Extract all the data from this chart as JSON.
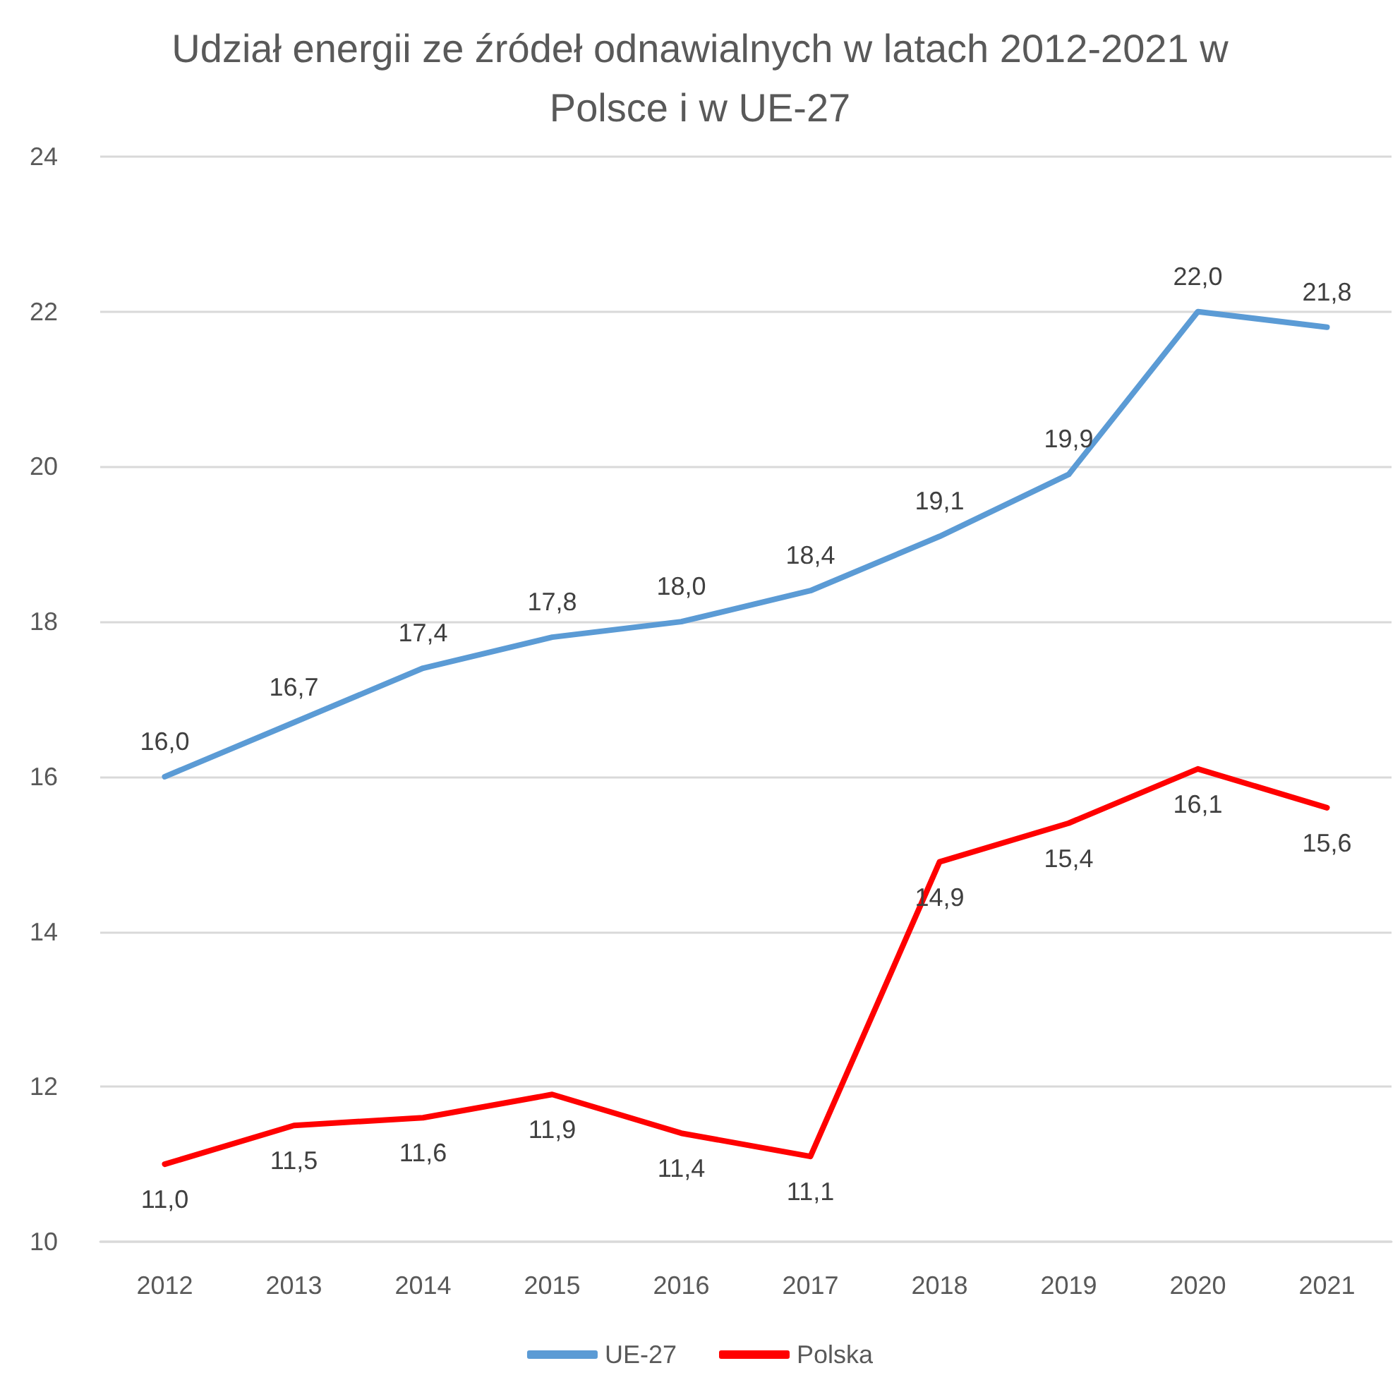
{
  "chart_data": {
    "type": "line",
    "title": "Udział energii ze źródeł odnawialnych w latach 2012-2021 w Polsce i w UE-27",
    "categories": [
      "2012",
      "2013",
      "2014",
      "2015",
      "2016",
      "2017",
      "2018",
      "2019",
      "2020",
      "2021"
    ],
    "series": [
      {
        "name": "UE-27",
        "color": "#5b9bd5",
        "values": [
          16.0,
          16.7,
          17.4,
          17.8,
          18.0,
          18.4,
          19.1,
          19.9,
          22.0,
          21.8
        ],
        "value_labels": [
          "16,0",
          "16,7",
          "17,4",
          "17,8",
          "18,0",
          "18,4",
          "19,1",
          "19,9",
          "22,0",
          "21,8"
        ]
      },
      {
        "name": "Polska",
        "color": "#ff0000",
        "values": [
          11.0,
          11.5,
          11.6,
          11.9,
          11.4,
          11.1,
          14.9,
          15.4,
          16.1,
          15.6
        ],
        "value_labels": [
          "11,0",
          "11,5",
          "11,6",
          "11,9",
          "11,4",
          "11,1",
          "14,9",
          "15,4",
          "16,1",
          "15,6"
        ]
      }
    ],
    "ylim": [
      10,
      24
    ],
    "yticks": [
      10,
      12,
      14,
      16,
      18,
      20,
      22,
      24
    ],
    "grid": "y",
    "legend": "bottom",
    "marker": "none",
    "line_style": "solid"
  }
}
